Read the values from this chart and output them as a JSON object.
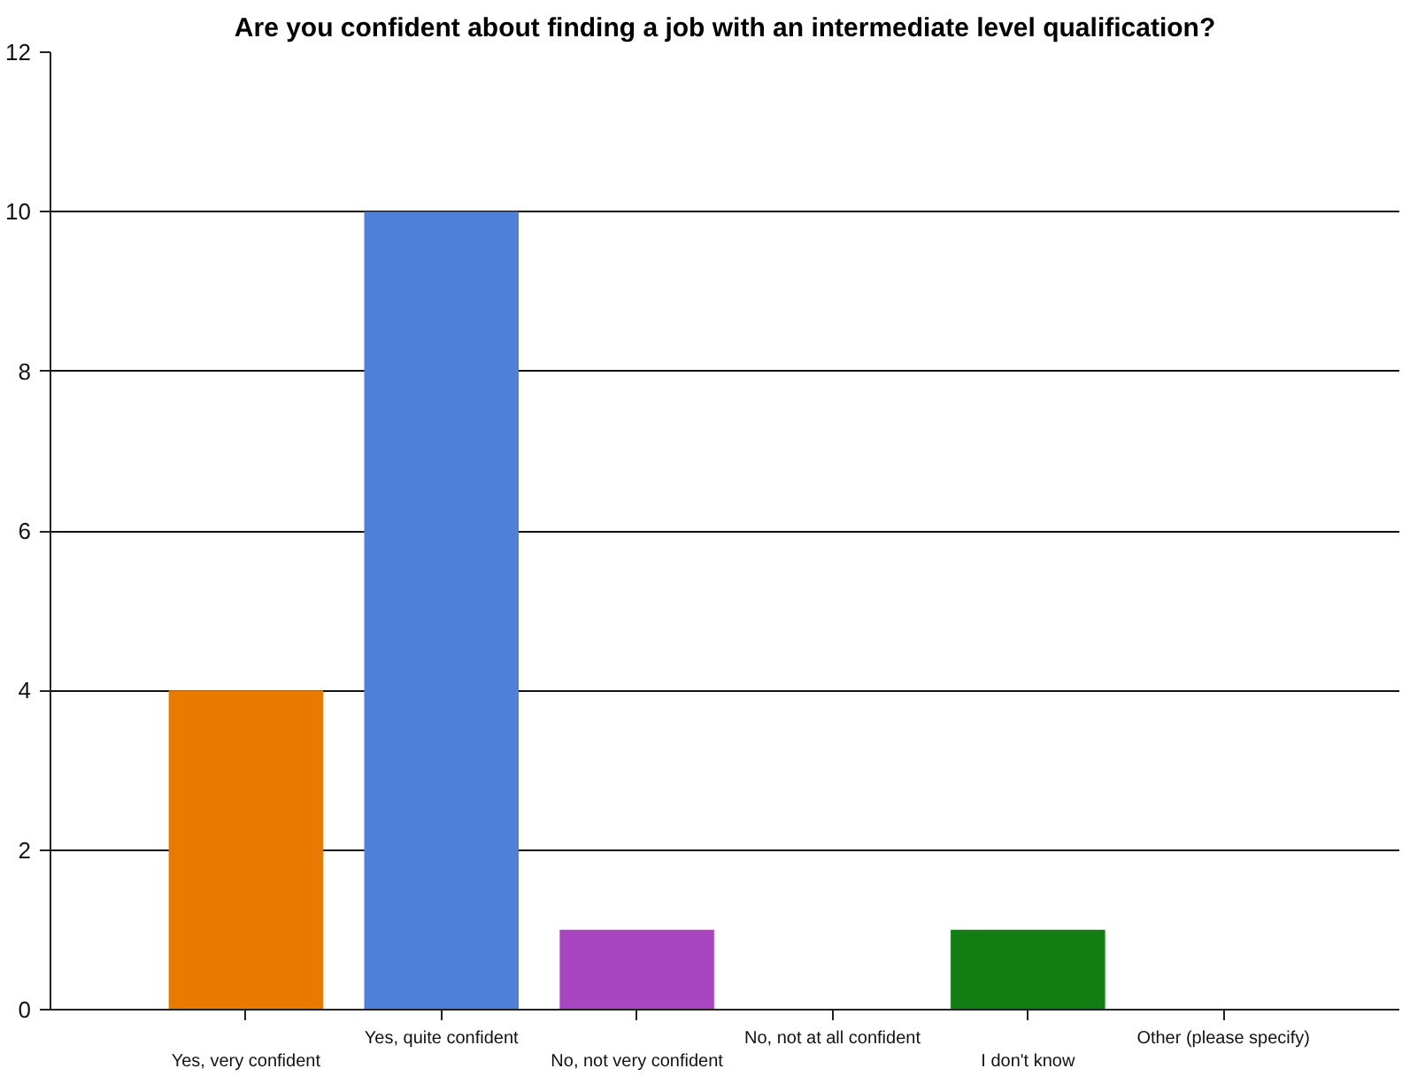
{
  "chart_data": {
    "type": "bar",
    "title": "Are you confident about finding a job with an intermediate level qualification?",
    "categories": [
      "Yes, very confident",
      "Yes, quite confident",
      "No, not very confident",
      "No, not at all confident",
      "I don't know",
      "Other (please specify)"
    ],
    "values": [
      4,
      10,
      1,
      0,
      1,
      0
    ],
    "colors": [
      "#e87a00",
      "#4f80d8",
      "#a846c2",
      "#888888",
      "#117d12",
      "#888888"
    ],
    "ylim": [
      0,
      12
    ],
    "yticks": [
      0,
      2,
      4,
      6,
      8,
      10,
      12
    ],
    "grid": "y"
  }
}
